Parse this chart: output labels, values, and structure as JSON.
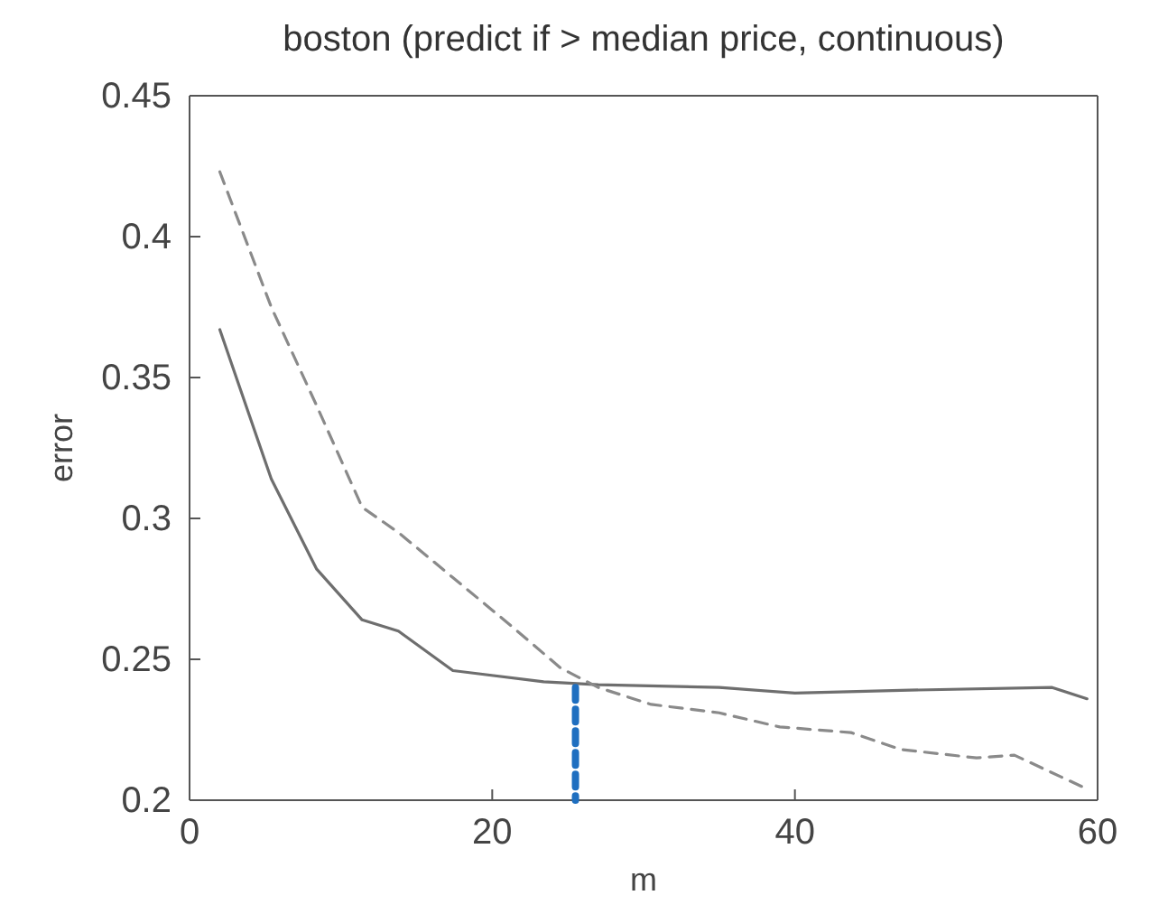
{
  "chart_data": {
    "type": "line",
    "title": "boston (predict if > median price, continuous)",
    "xlabel": "m",
    "ylabel": "error",
    "xlim": [
      0,
      60
    ],
    "xticks": [
      0,
      20,
      40,
      60
    ],
    "ylim": [
      0.2,
      0.45
    ],
    "yticks": [
      0.2,
      0.25,
      0.3,
      0.35,
      0.4,
      0.45
    ],
    "grid": false,
    "marker": "none",
    "series": [
      {
        "color": "#6e6e6e",
        "line_style": "solid",
        "x": [
          2,
          5.4,
          8.4,
          11.4,
          13.8,
          17.4,
          23.4,
          27,
          35,
          40,
          47,
          57,
          59.3
        ],
        "values": [
          0.367,
          0.314,
          0.282,
          0.264,
          0.26,
          0.246,
          0.242,
          0.241,
          0.24,
          0.238,
          0.239,
          0.24,
          0.236
        ]
      },
      {
        "color": "#8a8a8a",
        "line_style": "dashed",
        "x": [
          2,
          5.4,
          8.4,
          11.4,
          13.8,
          17.4,
          21,
          24.5,
          27,
          30.5,
          35,
          39,
          43.7,
          47,
          52,
          54.5,
          59.3
        ],
        "values": [
          0.423,
          0.375,
          0.34,
          0.304,
          0.295,
          0.279,
          0.263,
          0.247,
          0.24,
          0.234,
          0.231,
          0.226,
          0.224,
          0.218,
          0.215,
          0.216,
          0.204
        ]
      },
      {
        "color": "#1f6fc0",
        "line_style": "dashed",
        "x": [
          25.5,
          25.5
        ],
        "values": [
          0.24,
          0.2
        ]
      }
    ]
  }
}
